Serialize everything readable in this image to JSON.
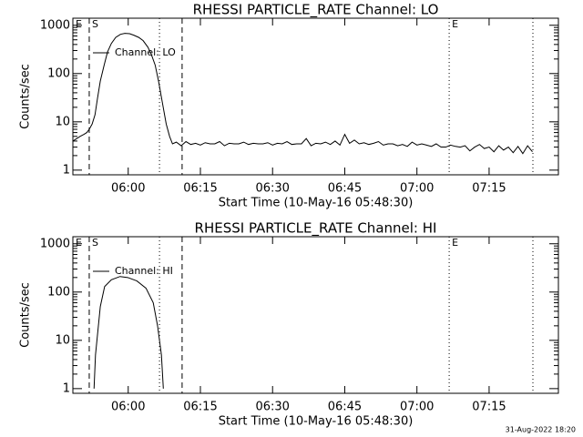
{
  "chart_data": [
    {
      "type": "line",
      "title": "RHESSI PARTICLE_RATE Channel: LO",
      "xlabel": "Start Time (10-May-16 05:48:30)",
      "ylabel": "Counts/sec",
      "log_y": true,
      "xlim": [
        348.5,
        449.4
      ],
      "ylim": [
        0.8,
        1400
      ],
      "xticks": [
        {
          "value": 360,
          "label": "06:00"
        },
        {
          "value": 375,
          "label": "06:15"
        },
        {
          "value": 390,
          "label": "06:30"
        },
        {
          "value": 405,
          "label": "06:45"
        },
        {
          "value": 420,
          "label": "07:00"
        },
        {
          "value": 435,
          "label": "07:15"
        }
      ],
      "yticks": [
        1,
        10,
        100,
        1000
      ],
      "vlines": [
        {
          "x": 348.5,
          "style": "dotted",
          "label": "E"
        },
        {
          "x": 351.9,
          "style": "dashed",
          "label": "S"
        },
        {
          "x": 366.5,
          "style": "dotted"
        },
        {
          "x": 371.2,
          "style": "dashed"
        },
        {
          "x": 426.7,
          "style": "dotted",
          "label": "E"
        },
        {
          "x": 444.1,
          "style": "dotted"
        }
      ],
      "x": [
        348.5,
        349.3,
        350,
        350.8,
        351.4,
        351.9,
        352.5,
        353.1,
        353.6,
        354.2,
        355,
        355.7,
        356.5,
        357.4,
        358.4,
        359.3,
        360.3,
        361.2,
        362.2,
        363.1,
        364.1,
        364.8,
        365.6,
        366.3,
        367.1,
        367.9,
        368.6,
        369.2,
        370,
        371,
        372,
        373,
        374,
        375,
        376,
        377,
        378,
        379,
        380,
        381,
        382,
        383,
        384,
        385,
        386,
        387,
        388,
        389,
        390,
        391,
        392,
        393,
        394,
        395,
        396,
        397,
        398,
        399,
        400,
        401,
        402,
        403,
        404,
        405,
        406,
        407,
        408,
        409,
        410,
        411,
        412,
        413,
        414,
        415,
        416,
        417,
        418,
        419,
        420,
        421,
        422,
        423,
        424,
        425,
        426,
        427,
        428,
        429,
        430,
        431,
        432,
        433,
        434,
        435,
        436,
        437,
        438,
        439,
        440,
        441,
        442,
        443,
        444
      ],
      "series": [
        {
          "name": "Channel: LO",
          "color": "#000000",
          "values": [
            4,
            4.5,
            5,
            5.5,
            6,
            7,
            9,
            14,
            30,
            70,
            150,
            280,
            420,
            560,
            650,
            680,
            670,
            620,
            560,
            480,
            350,
            250,
            150,
            70,
            25,
            9,
            5,
            3.5,
            3.8,
            3.2,
            3.9,
            3.4,
            3.6,
            3.3,
            3.7,
            3.5,
            3.5,
            3.9,
            3.2,
            3.6,
            3.5,
            3.5,
            3.8,
            3.4,
            3.6,
            3.5,
            3.5,
            3.7,
            3.3,
            3.6,
            3.5,
            3.9,
            3.4,
            3.5,
            3.5,
            4.5,
            3.2,
            3.6,
            3.5,
            3.8,
            3.4,
            4,
            3.3,
            5.5,
            3.6,
            4.2,
            3.5,
            3.7,
            3.4,
            3.6,
            3.9,
            3.3,
            3.5,
            3.5,
            3.2,
            3.4,
            3.1,
            3.8,
            3.3,
            3.5,
            3.3,
            3.1,
            3.5,
            3,
            3,
            3.3,
            3.1,
            3,
            3.2,
            2.5,
            3,
            3.4,
            2.8,
            3,
            2.4,
            3.2,
            2.6,
            3,
            2.3,
            3.1,
            2.2,
            3.2,
            2.4
          ]
        }
      ]
    },
    {
      "type": "line",
      "title": "RHESSI PARTICLE_RATE Channel: HI",
      "xlabel": "Start Time (10-May-16 05:48:30)",
      "ylabel": "Counts/sec",
      "log_y": true,
      "xlim": [
        348.5,
        449.4
      ],
      "ylim": [
        0.8,
        1400
      ],
      "xticks": [
        {
          "value": 360,
          "label": "06:00"
        },
        {
          "value": 375,
          "label": "06:15"
        },
        {
          "value": 390,
          "label": "06:30"
        },
        {
          "value": 405,
          "label": "06:45"
        },
        {
          "value": 420,
          "label": "07:00"
        },
        {
          "value": 435,
          "label": "07:15"
        }
      ],
      "yticks": [
        1,
        10,
        100,
        1000
      ],
      "vlines": [
        {
          "x": 348.5,
          "style": "dotted",
          "label": "E"
        },
        {
          "x": 351.9,
          "style": "dashed",
          "label": "S"
        },
        {
          "x": 366.5,
          "style": "dotted"
        },
        {
          "x": 371.2,
          "style": "dashed"
        },
        {
          "x": 426.7,
          "style": "dotted",
          "label": "E"
        },
        {
          "x": 444.1,
          "style": "dotted"
        }
      ],
      "x": [
        352.9,
        353.2,
        354.2,
        355.1,
        356.5,
        358.3,
        359.9,
        361.8,
        363.7,
        365.2,
        366.1,
        366.9,
        367.3
      ],
      "series": [
        {
          "name": "Channel: HI",
          "color": "#000000",
          "values": [
            1,
            5,
            50,
            130,
            180,
            210,
            200,
            170,
            120,
            60,
            20,
            5,
            1
          ]
        }
      ]
    }
  ],
  "footer": "31-Aug-2022 18:20"
}
